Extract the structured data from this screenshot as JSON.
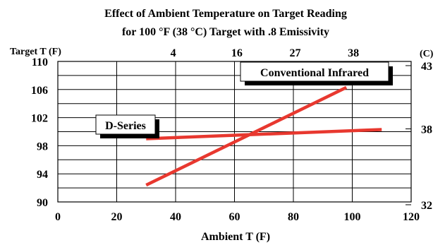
{
  "chart_data": {
    "type": "line",
    "title": "Effect of Ambient Temperature on Target Reading",
    "subtitle": "for 100 °F (38 °C) Target with .8 Emissivity",
    "ylabel": "Target T (F)",
    "ylabel_right": "(C)",
    "xlabel": "Ambient T (F)",
    "xlim": [
      0,
      120
    ],
    "ylim": [
      90,
      110
    ],
    "x_ticks": [
      "0",
      "20",
      "40",
      "60",
      "80",
      "100",
      "120"
    ],
    "y_ticks": [
      "90",
      "94",
      "98",
      "102",
      "106",
      "110"
    ],
    "y_ticks_right": [
      {
        "label": "32",
        "value": 89.6
      },
      {
        "label": "38",
        "value": 100.4
      },
      {
        "label": "43",
        "value": 109.4
      }
    ],
    "x_ticks_top": [
      {
        "label": "4",
        "value": 39.2
      },
      {
        "label": "16",
        "value": 60.8
      },
      {
        "label": "27",
        "value": 80.6
      },
      {
        "label": "38",
        "value": 100.4
      }
    ],
    "grid": true,
    "series": [
      {
        "name": "Conventional Infrared",
        "color": "#e8382f",
        "x": [
          30,
          98
        ],
        "y": [
          92.4,
          106.3
        ]
      },
      {
        "name": "D-Series",
        "color": "#e8382f",
        "x": [
          30,
          110
        ],
        "y": [
          99.0,
          100.3
        ]
      }
    ]
  }
}
